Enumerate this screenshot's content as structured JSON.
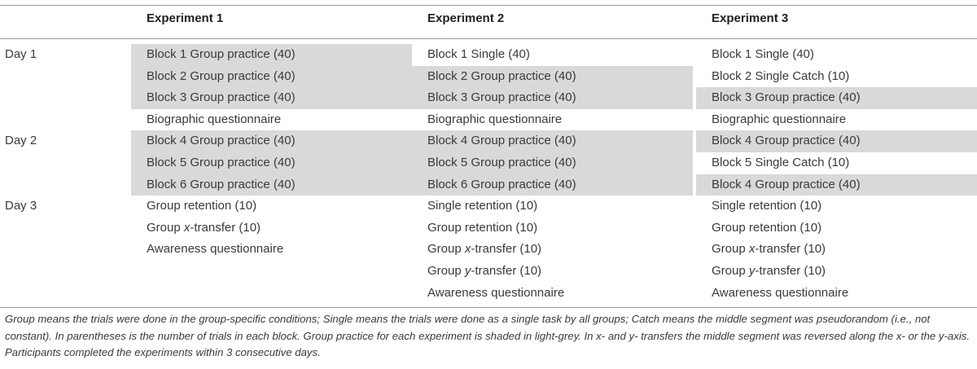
{
  "table": {
    "headers": [
      "Experiment 1",
      "Experiment 2",
      "Experiment 3"
    ],
    "days": [
      "Day 1",
      "Day 2",
      "Day 3"
    ],
    "columns": [
      [
        {
          "text": "Block 1 Group practice (40)",
          "shaded": true
        },
        {
          "text": "Block 2 Group practice (40)",
          "shaded": true
        },
        {
          "text": "Block 3 Group practice (40)",
          "shaded": true
        },
        {
          "text": "Biographic questionnaire",
          "shaded": false
        },
        {
          "text": "Block 4 Group practice (40)",
          "shaded": true
        },
        {
          "text": "Block 5 Group practice (40)",
          "shaded": true
        },
        {
          "text": "Block 6 Group practice (40)",
          "shaded": true
        },
        {
          "text": "Group retention (10)",
          "shaded": false
        },
        {
          "pre": "Group ",
          "em": "x",
          "post": "-transfer (10)",
          "shaded": false
        },
        {
          "text": "Awareness questionnaire",
          "shaded": false
        },
        {
          "text": "",
          "shaded": false
        },
        {
          "text": "",
          "shaded": false
        }
      ],
      [
        {
          "text": "Block 1 Single (40)",
          "shaded": false
        },
        {
          "text": "Block 2 Group practice (40)",
          "shaded": true
        },
        {
          "text": "Block 3 Group practice (40)",
          "shaded": true
        },
        {
          "text": "Biographic questionnaire",
          "shaded": false
        },
        {
          "text": "Block 4 Group practice (40)",
          "shaded": true
        },
        {
          "text": "Block 5 Group practice (40)",
          "shaded": true
        },
        {
          "text": "Block 6 Group practice (40)",
          "shaded": true
        },
        {
          "text": "Single retention (10)",
          "shaded": false
        },
        {
          "text": "Group retention (10)",
          "shaded": false
        },
        {
          "pre": "Group ",
          "em": "x",
          "post": "-transfer (10)",
          "shaded": false
        },
        {
          "pre": "Group ",
          "em": "y",
          "post": "-transfer (10)",
          "shaded": false
        },
        {
          "text": "Awareness questionnaire",
          "shaded": false
        }
      ],
      [
        {
          "text": "Block 1 Single (40)",
          "shaded": false
        },
        {
          "text": "Block 2 Single Catch (10)",
          "shaded": false
        },
        {
          "text": "Block 3 Group practice (40)",
          "shaded": true
        },
        {
          "text": "Biographic questionnaire",
          "shaded": false
        },
        {
          "text": "Block 4 Group practice (40)",
          "shaded": true
        },
        {
          "text": "Block 5 Single Catch (10)",
          "shaded": false
        },
        {
          "text": "Block 4 Group practice (40)",
          "shaded": true
        },
        {
          "text": "Single retention (10)",
          "shaded": false
        },
        {
          "text": "Group retention (10)",
          "shaded": false
        },
        {
          "pre": "Group ",
          "em": "x",
          "post": "-transfer (10)",
          "shaded": false
        },
        {
          "pre": "Group ",
          "em": "y",
          "post": "-transfer (10)",
          "shaded": false
        },
        {
          "text": "Awareness questionnaire",
          "shaded": false
        }
      ]
    ]
  },
  "footnote": "Group means the trials were done in the group-specific conditions; Single means the trials were done as a single task by all groups; Catch means the middle segment was pseudorandom (i.e., not constant). In parentheses is the number of trials in each block. Group practice for each experiment is shaded in light-grey. In x- and y- transfers the middle segment was reversed along the x- or the y-axis. Participants completed the experiments within 3 consecutive days."
}
